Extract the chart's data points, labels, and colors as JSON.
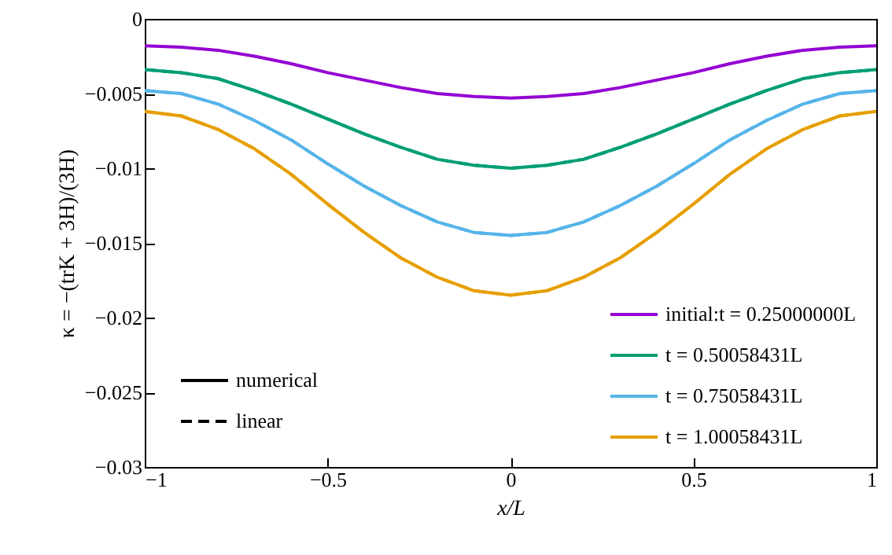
{
  "chart_data": {
    "type": "line",
    "xlabel": "x/L",
    "ylabel": "κ = −(trK + 3H)/(3H)",
    "x": [
      -1,
      -0.9,
      -0.8,
      -0.7,
      -0.6,
      -0.5,
      -0.4,
      -0.3,
      -0.2,
      -0.1,
      0,
      0.1,
      0.2,
      0.3,
      0.4,
      0.5,
      0.6,
      0.7,
      0.8,
      0.9,
      1
    ],
    "series": [
      {
        "name": "initial:t = 0.25000000L",
        "color": "#9400d3",
        "line_style": "solid",
        "values": [
          -0.0018,
          -0.0019,
          -0.0021,
          -0.0025,
          -0.003,
          -0.0036,
          -0.0041,
          -0.0046,
          -0.005,
          -0.0052,
          -0.0053,
          -0.0052,
          -0.005,
          -0.0046,
          -0.0041,
          -0.0036,
          -0.003,
          -0.0025,
          -0.0021,
          -0.0019,
          -0.0018
        ]
      },
      {
        "name": "t = 0.50058431L",
        "color": "#009e73",
        "line_style": "solid",
        "values": [
          -0.0034,
          -0.0036,
          -0.004,
          -0.0048,
          -0.0057,
          -0.0067,
          -0.0077,
          -0.0086,
          -0.0094,
          -0.0098,
          -0.01,
          -0.0098,
          -0.0094,
          -0.0086,
          -0.0077,
          -0.0067,
          -0.0057,
          -0.0048,
          -0.004,
          -0.0036,
          -0.0034
        ]
      },
      {
        "name": "t = 0.75058431L",
        "color": "#56b4e9",
        "line_style": "solid",
        "values": [
          -0.0048,
          -0.005,
          -0.0057,
          -0.0068,
          -0.0081,
          -0.0097,
          -0.0112,
          -0.0125,
          -0.0136,
          -0.0143,
          -0.0145,
          -0.0143,
          -0.0136,
          -0.0125,
          -0.0112,
          -0.0097,
          -0.0081,
          -0.0068,
          -0.0057,
          -0.005,
          -0.0048
        ]
      },
      {
        "name": "t = 1.00058431L",
        "color": "#e69f00",
        "line_style": "solid",
        "values": [
          -0.0062,
          -0.0065,
          -0.0074,
          -0.0087,
          -0.0104,
          -0.0124,
          -0.0143,
          -0.016,
          -0.0173,
          -0.0182,
          -0.0185,
          -0.0182,
          -0.0173,
          -0.016,
          -0.0143,
          -0.0124,
          -0.0104,
          -0.0087,
          -0.0074,
          -0.0065,
          -0.0062
        ]
      },
      {
        "color": "#009e73",
        "line_style": "dashed",
        "values": [
          -0.0034,
          -0.0036,
          -0.004,
          -0.0048,
          -0.0057,
          -0.0067,
          -0.0077,
          -0.0086,
          -0.0094,
          -0.0098,
          -0.01,
          -0.0098,
          -0.0094,
          -0.0086,
          -0.0077,
          -0.0067,
          -0.0057,
          -0.0048,
          -0.004,
          -0.0036,
          -0.0034
        ]
      },
      {
        "color": "#56b4e9",
        "line_style": "dashed",
        "values": [
          -0.0048,
          -0.005,
          -0.0057,
          -0.0068,
          -0.0081,
          -0.0097,
          -0.0112,
          -0.0125,
          -0.0136,
          -0.0143,
          -0.0145,
          -0.0143,
          -0.0136,
          -0.0125,
          -0.0112,
          -0.0097,
          -0.0081,
          -0.0068,
          -0.0057,
          -0.005,
          -0.0048
        ]
      },
      {
        "color": "#e69f00",
        "line_style": "dashed",
        "values": [
          -0.0062,
          -0.0065,
          -0.0074,
          -0.0087,
          -0.0104,
          -0.0124,
          -0.0143,
          -0.016,
          -0.0173,
          -0.0182,
          -0.0185,
          -0.0182,
          -0.0173,
          -0.016,
          -0.0143,
          -0.0124,
          -0.0104,
          -0.0087,
          -0.0074,
          -0.0065,
          -0.0062
        ]
      },
      {
        "name": "numerical",
        "color": "#000000",
        "line_style": "solid",
        "values": [
          null,
          null,
          null,
          null,
          null,
          null,
          null,
          null,
          null,
          null,
          null,
          null,
          null,
          null,
          null,
          null,
          null,
          null,
          null,
          null,
          null
        ]
      },
      {
        "name": "linear",
        "color": "#000000",
        "line_style": "dashed",
        "values": [
          null,
          null,
          null,
          null,
          null,
          null,
          null,
          null,
          null,
          null,
          null,
          null,
          null,
          null,
          null,
          null,
          null,
          null,
          null,
          null,
          null
        ]
      }
    ],
    "xlim": [
      -1,
      1
    ],
    "xticks": [
      {
        "value": -1,
        "label": "−1"
      },
      {
        "value": -0.5,
        "label": "−0.5"
      },
      0,
      0.5,
      1
    ],
    "ylim": [
      -0.03,
      0
    ],
    "yticks": [
      {
        "value": -0.03,
        "label": "−0.03"
      },
      {
        "value": -0.025,
        "label": "−0.025"
      },
      {
        "value": -0.02,
        "label": "−0.02"
      },
      {
        "value": -0.015,
        "label": "−0.015"
      },
      {
        "value": -0.01,
        "label": "−0.01"
      },
      {
        "value": -0.005,
        "label": "−0.005"
      },
      0
    ],
    "grid": false,
    "legend": "bottom right"
  }
}
